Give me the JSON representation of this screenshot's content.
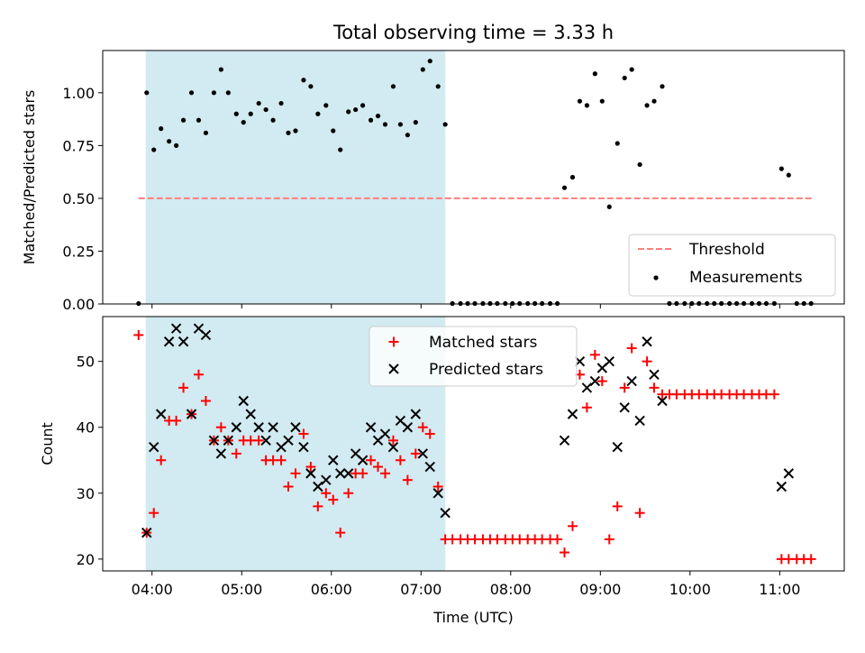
{
  "chart_data": [
    {
      "panel": "top",
      "type": "scatter",
      "title": "Total observing time = 3.33 h",
      "ylabel": "Matched/Predicted stars",
      "ylim": [
        0.0,
        1.2
      ],
      "yticks": [
        "0.00",
        "0.25",
        "0.50",
        "0.75",
        "1.00"
      ],
      "yticks_values": [
        0.0,
        0.25,
        0.5,
        0.75,
        1.0
      ],
      "x_unit": "hours UTC",
      "xlim": [
        3.45,
        11.72
      ],
      "shaded_interval": [
        3.93,
        7.27
      ],
      "shade_color": "#add8e6",
      "legend": {
        "position": "lower right",
        "entries": [
          "Threshold",
          "Measurements"
        ]
      },
      "threshold": {
        "name": "Threshold",
        "y": 0.5,
        "x": [
          3.85,
          11.37
        ],
        "color": "#ff7f7f",
        "style": "dashed"
      },
      "series": [
        {
          "name": "Measurements",
          "color": "#000000",
          "x": [
            3.85,
            3.94,
            4.02,
            4.1,
            4.19,
            4.27,
            4.35,
            4.44,
            4.52,
            4.6,
            4.69,
            4.77,
            4.85,
            4.94,
            5.02,
            5.1,
            5.19,
            5.27,
            5.35,
            5.44,
            5.52,
            5.6,
            5.69,
            5.77,
            5.85,
            5.94,
            6.02,
            6.1,
            6.19,
            6.27,
            6.35,
            6.44,
            6.52,
            6.6,
            6.69,
            6.77,
            6.85,
            6.94,
            7.02,
            7.1,
            7.19,
            7.27,
            7.35,
            7.44,
            7.52,
            7.6,
            7.69,
            7.77,
            7.85,
            7.94,
            8.02,
            8.1,
            8.19,
            8.27,
            8.35,
            8.44,
            8.52,
            8.6,
            8.69,
            8.77,
            8.85,
            8.94,
            9.02,
            9.1,
            9.19,
            9.27,
            9.35,
            9.44,
            9.52,
            9.6,
            9.69,
            9.77,
            9.85,
            9.94,
            10.02,
            10.1,
            10.19,
            10.27,
            10.35,
            10.44,
            10.52,
            10.6,
            10.69,
            10.77,
            10.85,
            10.94,
            11.02,
            11.1,
            11.19,
            11.27,
            11.35
          ],
          "y": [
            0.0,
            1.0,
            0.73,
            0.83,
            0.77,
            0.75,
            0.87,
            1.0,
            0.87,
            0.81,
            1.0,
            1.11,
            1.0,
            0.9,
            0.86,
            0.9,
            0.95,
            0.92,
            0.87,
            0.95,
            0.81,
            0.82,
            1.06,
            1.03,
            0.9,
            0.94,
            0.82,
            0.73,
            0.91,
            0.92,
            0.94,
            0.87,
            0.89,
            0.85,
            1.03,
            0.85,
            0.8,
            0.86,
            1.11,
            1.15,
            1.03,
            0.85,
            0.0,
            0.0,
            0.0,
            0.0,
            0.0,
            0.0,
            0.0,
            0.0,
            0.0,
            0.0,
            0.0,
            0.0,
            0.0,
            0.0,
            0.0,
            0.55,
            0.6,
            0.96,
            0.94,
            1.09,
            0.96,
            0.46,
            0.76,
            1.07,
            1.11,
            0.66,
            0.94,
            0.96,
            1.03,
            0.0,
            0.0,
            0.0,
            0.0,
            0.0,
            0.0,
            0.0,
            0.0,
            0.0,
            0.0,
            0.0,
            0.0,
            0.0,
            0.0,
            0.0,
            0.64,
            0.61,
            0.0,
            0.0,
            0.0
          ]
        }
      ]
    },
    {
      "panel": "bottom",
      "type": "scatter",
      "xlabel": "Time (UTC)",
      "ylabel": "Count",
      "ylim": [
        18.2,
        56.8
      ],
      "yticks": [
        "20",
        "30",
        "40",
        "50"
      ],
      "yticks_values": [
        20,
        30,
        40,
        50
      ],
      "xlim": [
        3.45,
        11.72
      ],
      "xticks": [
        "04:00",
        "05:00",
        "06:00",
        "07:00",
        "08:00",
        "09:00",
        "10:00",
        "11:00"
      ],
      "xticks_values": [
        4,
        5,
        6,
        7,
        8,
        9,
        10,
        11
      ],
      "shaded_interval": [
        3.93,
        7.27
      ],
      "legend": {
        "position": "upper center",
        "entries": [
          "Matched stars",
          "Predicted stars"
        ]
      },
      "series": [
        {
          "name": "Matched stars",
          "color": "#ff0000",
          "marker": "plus",
          "x": [
            3.85,
            3.94,
            4.02,
            4.1,
            4.19,
            4.27,
            4.35,
            4.44,
            4.52,
            4.6,
            4.69,
            4.77,
            4.85,
            4.94,
            5.02,
            5.1,
            5.19,
            5.27,
            5.35,
            5.44,
            5.52,
            5.6,
            5.69,
            5.77,
            5.85,
            5.94,
            6.02,
            6.1,
            6.19,
            6.27,
            6.35,
            6.44,
            6.52,
            6.6,
            6.69,
            6.77,
            6.85,
            6.94,
            7.02,
            7.1,
            7.19,
            7.27,
            7.35,
            7.44,
            7.52,
            7.6,
            7.69,
            7.77,
            7.85,
            7.94,
            8.02,
            8.1,
            8.19,
            8.27,
            8.35,
            8.44,
            8.52,
            8.6,
            8.69,
            8.77,
            8.85,
            8.94,
            9.02,
            9.1,
            9.19,
            9.27,
            9.35,
            9.44,
            9.52,
            9.6,
            9.69,
            9.77,
            9.85,
            9.94,
            10.02,
            10.1,
            10.19,
            10.27,
            10.35,
            10.44,
            10.52,
            10.6,
            10.69,
            10.77,
            10.85,
            10.94,
            11.02,
            11.1,
            11.19,
            11.27,
            11.35
          ],
          "y": [
            54,
            24,
            27,
            35,
            41,
            41,
            46,
            42,
            48,
            44,
            38,
            40,
            38,
            36,
            38,
            38,
            38,
            35,
            35,
            35,
            31,
            33,
            39,
            34,
            28,
            30,
            29,
            24,
            30,
            33,
            33,
            35,
            34,
            33,
            38,
            35,
            32,
            36,
            40,
            39,
            31,
            23,
            23,
            23,
            23,
            23,
            23,
            23,
            23,
            23,
            23,
            23,
            23,
            23,
            23,
            23,
            23,
            21,
            25,
            48,
            43,
            51,
            47,
            23,
            28,
            46,
            52,
            27,
            50,
            46,
            45,
            45,
            45,
            45,
            45,
            45,
            45,
            45,
            45,
            45,
            45,
            45,
            45,
            45,
            45,
            45,
            20,
            20,
            20,
            20,
            20
          ]
        },
        {
          "name": "Predicted stars",
          "color": "#000000",
          "marker": "x",
          "x": [
            3.94,
            4.02,
            4.1,
            4.19,
            4.27,
            4.35,
            4.44,
            4.52,
            4.6,
            4.69,
            4.77,
            4.85,
            4.94,
            5.02,
            5.1,
            5.19,
            5.27,
            5.35,
            5.44,
            5.52,
            5.6,
            5.69,
            5.77,
            5.85,
            5.94,
            6.02,
            6.1,
            6.19,
            6.27,
            6.35,
            6.44,
            6.52,
            6.6,
            6.69,
            6.77,
            6.85,
            6.94,
            7.02,
            7.1,
            7.19,
            7.27,
            8.6,
            8.69,
            8.77,
            8.85,
            8.94,
            9.02,
            9.1,
            9.19,
            9.27,
            9.35,
            9.44,
            9.52,
            9.6,
            9.69,
            11.02,
            11.1
          ],
          "y": [
            24,
            37,
            42,
            53,
            55,
            53,
            42,
            55,
            54,
            38,
            36,
            38,
            40,
            44,
            42,
            40,
            38,
            40,
            37,
            38,
            40,
            37,
            33,
            31,
            32,
            35,
            33,
            33,
            36,
            35,
            40,
            38,
            39,
            37,
            41,
            40,
            42,
            36,
            34,
            30,
            27,
            38,
            42,
            50,
            46,
            47,
            49,
            50,
            37,
            43,
            47,
            41,
            53,
            48,
            44,
            31,
            33
          ]
        }
      ]
    }
  ]
}
